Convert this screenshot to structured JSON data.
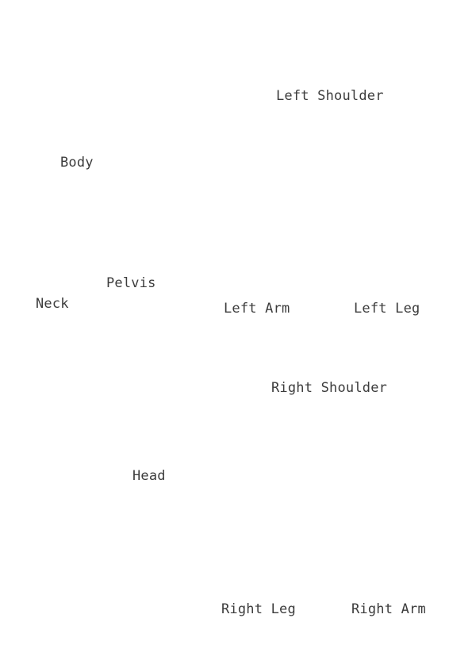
{
  "labels": {
    "left_shoulder": "Left Shoulder",
    "body": "Body",
    "pelvis": "Pelvis",
    "neck": "Neck",
    "left_arm": "Left Arm",
    "left_leg": "Left Leg",
    "right_shoulder": "Right Shoulder",
    "head": "Head",
    "right_leg": "Right Leg",
    "right_arm": "Right Arm"
  },
  "colors": {
    "background": "#ffffff",
    "text": "#3c3c3c"
  }
}
